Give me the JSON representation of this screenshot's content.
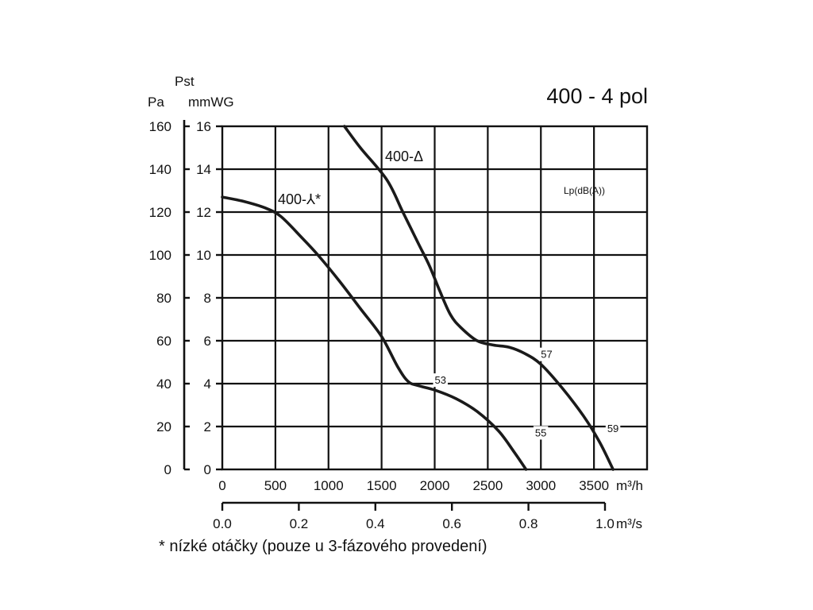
{
  "title": "400 - 4 pol",
  "footnote": "* nízké otáčky (pouze u 3-fázového provedení)",
  "chart_data": {
    "type": "line",
    "title": "400 - 4 pol",
    "y_axis_label": "Pst",
    "y_left_unit": "Pa",
    "y_right_unit": "mmWG",
    "y_left_ticks": [
      0,
      20,
      40,
      60,
      80,
      100,
      120,
      140,
      160
    ],
    "y_right_ticks": [
      0,
      2,
      4,
      6,
      8,
      10,
      12,
      14,
      16
    ],
    "ylim": [
      0,
      160
    ],
    "x_unit": "m³/h",
    "x_ticks": [
      0,
      500,
      1000,
      1500,
      2000,
      2500,
      3000,
      3500
    ],
    "xlim": [
      0,
      4000
    ],
    "x2_unit": "m³/s",
    "x2_ticks": [
      "0.0",
      "0.2",
      "0.4",
      "0.6",
      "0.8",
      "1.0"
    ],
    "grid": true,
    "annotation": "Lp(dB(A))",
    "series": [
      {
        "name": "400-Δ",
        "points": [
          [
            1150,
            160
          ],
          [
            1300,
            150
          ],
          [
            1550,
            135
          ],
          [
            1700,
            120
          ],
          [
            1850,
            105
          ],
          [
            1950,
            95
          ],
          [
            2050,
            83
          ],
          [
            2150,
            72
          ],
          [
            2250,
            66
          ],
          [
            2400,
            60
          ],
          [
            2550,
            58
          ],
          [
            2700,
            57
          ],
          [
            2850,
            54
          ],
          [
            3000,
            49
          ],
          [
            3200,
            38
          ],
          [
            3400,
            25
          ],
          [
            3550,
            13
          ],
          [
            3680,
            0
          ]
        ],
        "sound_levels": [
          {
            "x": 3000,
            "y": 49,
            "label": "57"
          },
          {
            "x": 3580,
            "y": 10,
            "label": "59"
          }
        ]
      },
      {
        "name": "400-⅄*",
        "points": [
          [
            0,
            127
          ],
          [
            200,
            125
          ],
          [
            400,
            122
          ],
          [
            550,
            118
          ],
          [
            750,
            108
          ],
          [
            900,
            100
          ],
          [
            1100,
            88
          ],
          [
            1300,
            75
          ],
          [
            1500,
            62
          ],
          [
            1650,
            48
          ],
          [
            1750,
            41
          ],
          [
            1850,
            39
          ],
          [
            2000,
            37
          ],
          [
            2200,
            33
          ],
          [
            2400,
            27
          ],
          [
            2600,
            18
          ],
          [
            2750,
            8
          ],
          [
            2860,
            0
          ]
        ],
        "sound_levels": [
          {
            "x": 2000,
            "y": 37,
            "label": "53"
          },
          {
            "x": 2900,
            "y": 8,
            "label": "55"
          }
        ]
      }
    ]
  }
}
